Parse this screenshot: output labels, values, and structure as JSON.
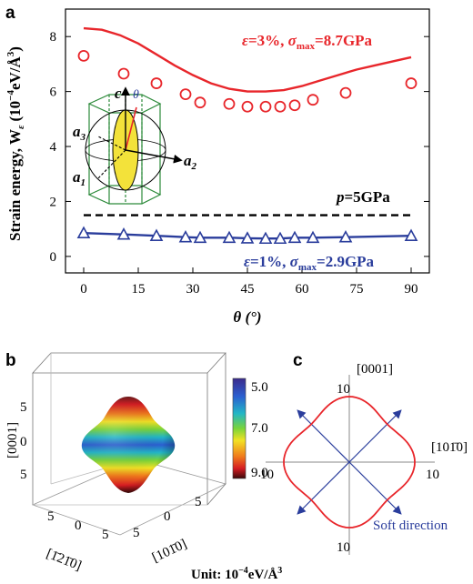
{
  "panels": {
    "a": {
      "label": "a",
      "chart_data": {
        "type": "line",
        "xlabel": "θ (°)",
        "ylabel": "Strain energy, W",
        "ylabel_sub": "ε",
        "ylabel_unit": "(10",
        "ylabel_exp": "−4",
        "ylabel_unit2": "eV/Å",
        "ylabel_exp2": "3",
        "ylabel_close": ")",
        "x_ticks": [
          "0",
          "15",
          "30",
          "45",
          "60",
          "75",
          "90"
        ],
        "y_ticks": [
          "0",
          "2",
          "4",
          "6",
          "8"
        ],
        "xlim": [
          -5,
          95
        ],
        "ylim": [
          -0.6,
          9.0
        ],
        "colors": {
          "red": "#e8262b",
          "blue": "#2a3d9c",
          "black": "#000000"
        },
        "series": [
          {
            "type": "line",
            "color": "red",
            "x": [
              0,
              5,
              10,
              15,
              20,
              25,
              30,
              35,
              40,
              45,
              50,
              55,
              60,
              65,
              70,
              75,
              80,
              85,
              90
            ],
            "y": [
              8.3,
              8.25,
              8.05,
              7.75,
              7.35,
              6.95,
              6.6,
              6.3,
              6.1,
              6.0,
              6.0,
              6.05,
              6.2,
              6.4,
              6.6,
              6.8,
              6.95,
              7.1,
              7.25
            ]
          },
          {
            "type": "scatter",
            "marker": "circle",
            "color": "red",
            "x": [
              0,
              11,
              20,
              28,
              32,
              40,
              45,
              50,
              54,
              58,
              63,
              72,
              90
            ],
            "y": [
              7.3,
              6.65,
              6.3,
              5.9,
              5.6,
              5.55,
              5.45,
              5.45,
              5.45,
              5.5,
              5.7,
              5.95,
              6.3
            ]
          },
          {
            "type": "dashed",
            "color": "black",
            "x": [
              0,
              90
            ],
            "y": [
              1.5,
              1.5
            ]
          },
          {
            "type": "line",
            "marker": "triangle",
            "color": "blue",
            "x": [
              0,
              11,
              20,
              28,
              32,
              40,
              45,
              50,
              54,
              58,
              63,
              72,
              90
            ],
            "y": [
              0.85,
              0.8,
              0.75,
              0.7,
              0.68,
              0.68,
              0.66,
              0.65,
              0.65,
              0.68,
              0.68,
              0.7,
              0.75
            ]
          }
        ],
        "annotations": {
          "top_eps": "ε",
          "top_eq1": "=3%, ",
          "top_sigma": "σ",
          "top_max": "max",
          "top_val": "=8.7GPa",
          "p_label": "p",
          "p_val": "=5GPa",
          "bot_eps": "ε",
          "bot_eq1": "=1%, ",
          "bot_sigma": "σ",
          "bot_max": "max",
          "bot_val": "=2.9GPa"
        },
        "inset": {
          "c": "c",
          "theta": "θ",
          "a1": "a",
          "a1s": "1",
          "a2": "a",
          "a2s": "2",
          "a3": "a",
          "a3s": "3"
        }
      }
    },
    "b": {
      "label": "b",
      "axis_z": "[0001]",
      "axis_x": "[1̄21̄0]",
      "axis_y": "[101̄0]",
      "z_ticks": [
        "5",
        "0",
        "5"
      ],
      "x_ticks": [
        "5",
        "0",
        "5"
      ],
      "y_ticks": [
        "5",
        "0",
        "5"
      ],
      "colorbar_ticks": [
        "5.0",
        "7.0",
        "9.0"
      ],
      "unit_prefix": "Unit: 10",
      "unit_exp": "−4",
      "unit_rest": "eV/Å",
      "unit_exp2": "3"
    },
    "c": {
      "label": "c",
      "axis_v": "[0001]",
      "axis_h": "[101̄0]",
      "top_tick": "10",
      "bottom_tick": "10",
      "left_tick": "10",
      "right_tick": "10",
      "soft": "Soft direction"
    }
  }
}
